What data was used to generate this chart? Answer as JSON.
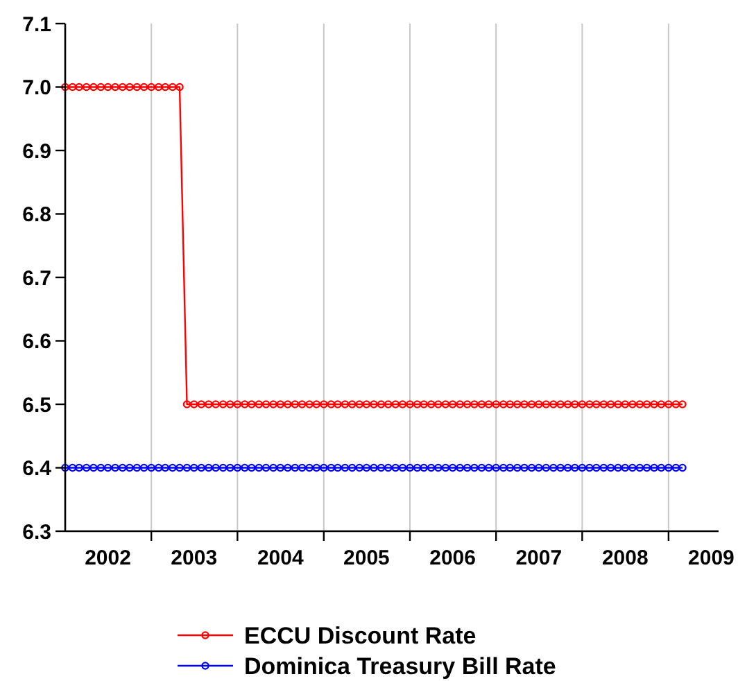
{
  "chart_data": {
    "type": "line",
    "x": [
      "2002-01",
      "2002-02",
      "2002-03",
      "2002-04",
      "2002-05",
      "2002-06",
      "2002-07",
      "2002-08",
      "2002-09",
      "2002-10",
      "2002-11",
      "2002-12",
      "2003-01",
      "2003-02",
      "2003-03",
      "2003-04",
      "2003-05",
      "2003-06",
      "2003-07",
      "2003-08",
      "2003-09",
      "2003-10",
      "2003-11",
      "2003-12",
      "2004-01",
      "2004-02",
      "2004-03",
      "2004-04",
      "2004-05",
      "2004-06",
      "2004-07",
      "2004-08",
      "2004-09",
      "2004-10",
      "2004-11",
      "2004-12",
      "2005-01",
      "2005-02",
      "2005-03",
      "2005-04",
      "2005-05",
      "2005-06",
      "2005-07",
      "2005-08",
      "2005-09",
      "2005-10",
      "2005-11",
      "2005-12",
      "2006-01",
      "2006-02",
      "2006-03",
      "2006-04",
      "2006-05",
      "2006-06",
      "2006-07",
      "2006-08",
      "2006-09",
      "2006-10",
      "2006-11",
      "2006-12",
      "2007-01",
      "2007-02",
      "2007-03",
      "2007-04",
      "2007-05",
      "2007-06",
      "2007-07",
      "2007-08",
      "2007-09",
      "2007-10",
      "2007-11",
      "2007-12",
      "2008-01",
      "2008-02",
      "2008-03",
      "2008-04",
      "2008-05",
      "2008-06",
      "2008-07",
      "2008-08",
      "2008-09",
      "2008-10",
      "2008-11",
      "2008-12",
      "2009-01",
      "2009-02",
      "2009-03"
    ],
    "series": [
      {
        "name": "ECCU Discount Rate",
        "color": "#ff0000",
        "values": [
          7.0,
          7.0,
          7.0,
          7.0,
          7.0,
          7.0,
          7.0,
          7.0,
          7.0,
          7.0,
          7.0,
          7.0,
          7.0,
          7.0,
          7.0,
          7.0,
          7.0,
          6.5,
          6.5,
          6.5,
          6.5,
          6.5,
          6.5,
          6.5,
          6.5,
          6.5,
          6.5,
          6.5,
          6.5,
          6.5,
          6.5,
          6.5,
          6.5,
          6.5,
          6.5,
          6.5,
          6.5,
          6.5,
          6.5,
          6.5,
          6.5,
          6.5,
          6.5,
          6.5,
          6.5,
          6.5,
          6.5,
          6.5,
          6.5,
          6.5,
          6.5,
          6.5,
          6.5,
          6.5,
          6.5,
          6.5,
          6.5,
          6.5,
          6.5,
          6.5,
          6.5,
          6.5,
          6.5,
          6.5,
          6.5,
          6.5,
          6.5,
          6.5,
          6.5,
          6.5,
          6.5,
          6.5,
          6.5,
          6.5,
          6.5,
          6.5,
          6.5,
          6.5,
          6.5,
          6.5,
          6.5,
          6.5,
          6.5,
          6.5,
          6.5,
          6.5,
          6.5
        ]
      },
      {
        "name": "Dominica Treasury Bill Rate",
        "color": "#0000ff",
        "values": [
          6.4,
          6.4,
          6.4,
          6.4,
          6.4,
          6.4,
          6.4,
          6.4,
          6.4,
          6.4,
          6.4,
          6.4,
          6.4,
          6.4,
          6.4,
          6.4,
          6.4,
          6.4,
          6.4,
          6.4,
          6.4,
          6.4,
          6.4,
          6.4,
          6.4,
          6.4,
          6.4,
          6.4,
          6.4,
          6.4,
          6.4,
          6.4,
          6.4,
          6.4,
          6.4,
          6.4,
          6.4,
          6.4,
          6.4,
          6.4,
          6.4,
          6.4,
          6.4,
          6.4,
          6.4,
          6.4,
          6.4,
          6.4,
          6.4,
          6.4,
          6.4,
          6.4,
          6.4,
          6.4,
          6.4,
          6.4,
          6.4,
          6.4,
          6.4,
          6.4,
          6.4,
          6.4,
          6.4,
          6.4,
          6.4,
          6.4,
          6.4,
          6.4,
          6.4,
          6.4,
          6.4,
          6.4,
          6.4,
          6.4,
          6.4,
          6.4,
          6.4,
          6.4,
          6.4,
          6.4,
          6.4,
          6.4,
          6.4,
          6.4,
          6.4,
          6.4,
          6.4
        ]
      }
    ],
    "xlim": [
      "2002-01",
      "2009-08"
    ],
    "xticks": [
      {
        "value": "2002-07",
        "label": "2002"
      },
      {
        "value": "2003-01",
        "label": null
      },
      {
        "value": "2003-07",
        "label": "2003"
      },
      {
        "value": "2004-01",
        "label": null
      },
      {
        "value": "2004-07",
        "label": "2004"
      },
      {
        "value": "2005-01",
        "label": null
      },
      {
        "value": "2005-07",
        "label": "2005"
      },
      {
        "value": "2006-01",
        "label": null
      },
      {
        "value": "2006-07",
        "label": "2006"
      },
      {
        "value": "2007-01",
        "label": null
      },
      {
        "value": "2007-07",
        "label": "2007"
      },
      {
        "value": "2008-01",
        "label": null
      },
      {
        "value": "2008-07",
        "label": "2008"
      },
      {
        "value": "2009-01",
        "label": null
      },
      {
        "value": "2009-07",
        "label": "2009"
      }
    ],
    "ylim": [
      6.3,
      7.1
    ],
    "yticks": [
      6.3,
      6.4,
      6.5,
      6.6,
      6.7,
      6.8,
      6.9,
      {
        "value": 7.0,
        "label": "7.0"
      },
      7.1
    ],
    "grid": "x",
    "legend": "bottom",
    "marker": "circle",
    "line_style": "solid"
  }
}
